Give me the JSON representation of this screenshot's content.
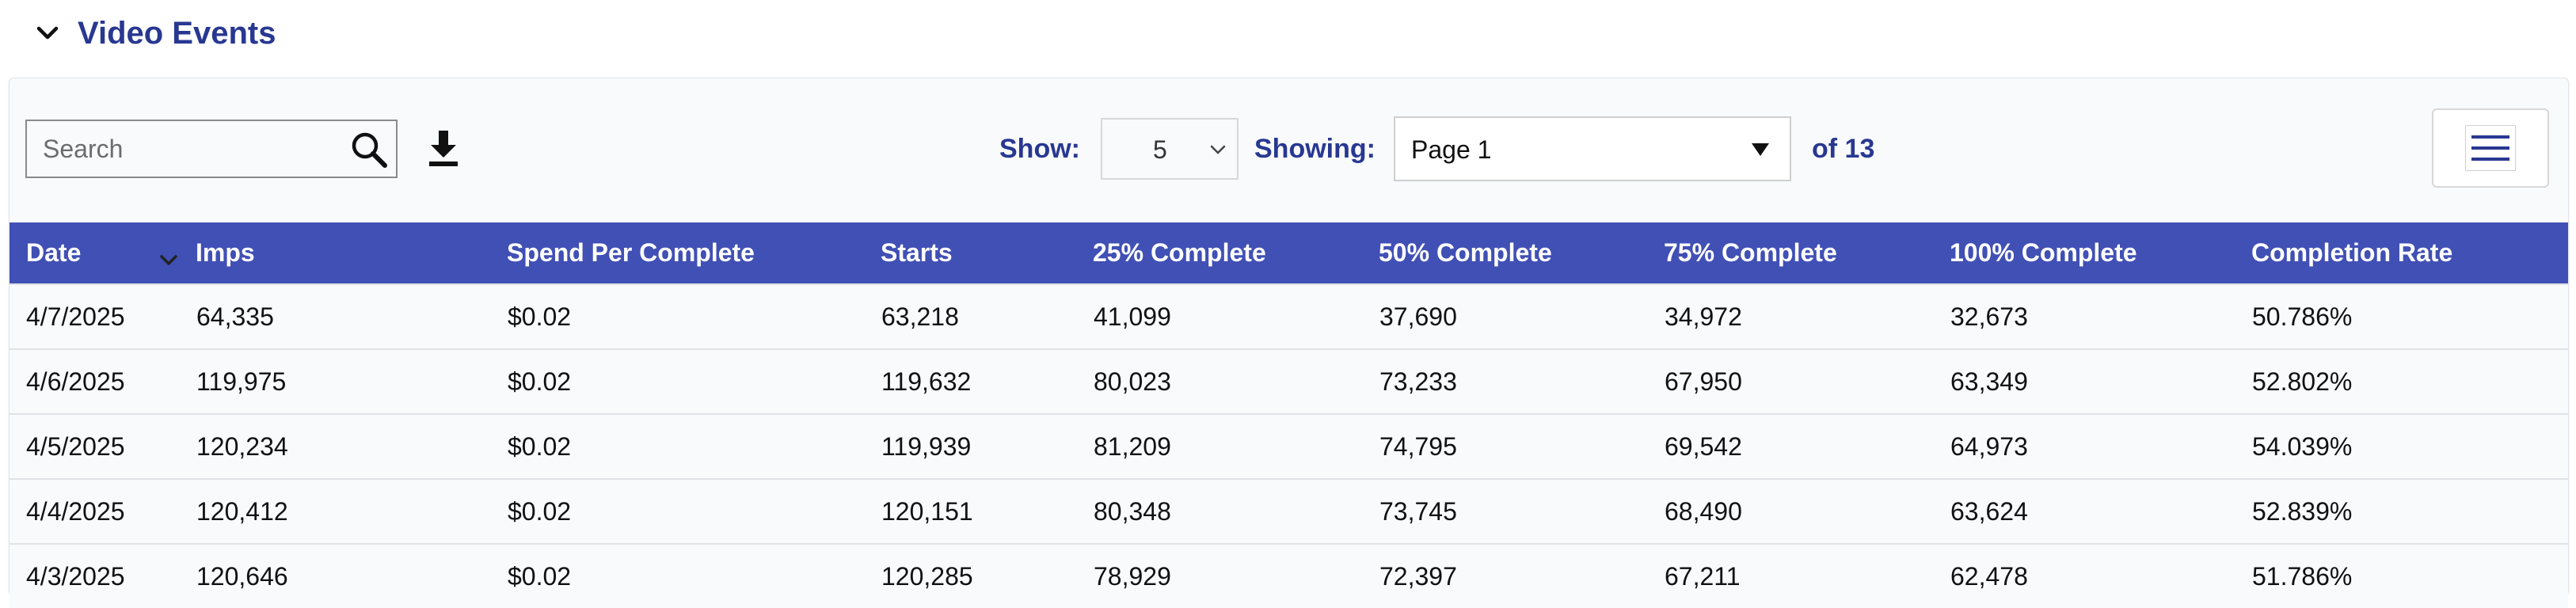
{
  "section": {
    "title": "Video Events",
    "collapse_icon": "chevron-down-icon"
  },
  "toolbar": {
    "search_placeholder": "Search",
    "search_value": "",
    "show_label": "Show:",
    "show_value": "5",
    "showing_label": "Showing:",
    "page_value": "Page 1",
    "of_label": "of 13",
    "icons": {
      "search": "search-icon",
      "download": "download-icon",
      "menu": "hamburger-menu-icon",
      "sort": "chevron-down-icon"
    }
  },
  "table": {
    "columns": [
      "Date",
      "Imps",
      "Spend Per Complete",
      "Starts",
      "25% Complete",
      "50% Complete",
      "75% Complete",
      "100% Complete",
      "Completion Rate"
    ],
    "rows": [
      [
        "4/7/2025",
        "64,335",
        "$0.02",
        "63,218",
        "41,099",
        "37,690",
        "34,972",
        "32,673",
        "50.786%"
      ],
      [
        "4/6/2025",
        "119,975",
        "$0.02",
        "119,632",
        "80,023",
        "73,233",
        "67,950",
        "63,349",
        "52.802%"
      ],
      [
        "4/5/2025",
        "120,234",
        "$0.02",
        "119,939",
        "81,209",
        "74,795",
        "69,542",
        "64,973",
        "54.039%"
      ],
      [
        "4/4/2025",
        "120,412",
        "$0.02",
        "120,151",
        "80,348",
        "73,745",
        "68,490",
        "63,624",
        "52.839%"
      ],
      [
        "4/3/2025",
        "120,646",
        "$0.02",
        "120,285",
        "78,929",
        "72,397",
        "67,211",
        "62,478",
        "51.786%"
      ]
    ]
  },
  "colors": {
    "accent": "#283891",
    "header_bg": "#4150b5",
    "panel_bg": "#f9fafc"
  }
}
